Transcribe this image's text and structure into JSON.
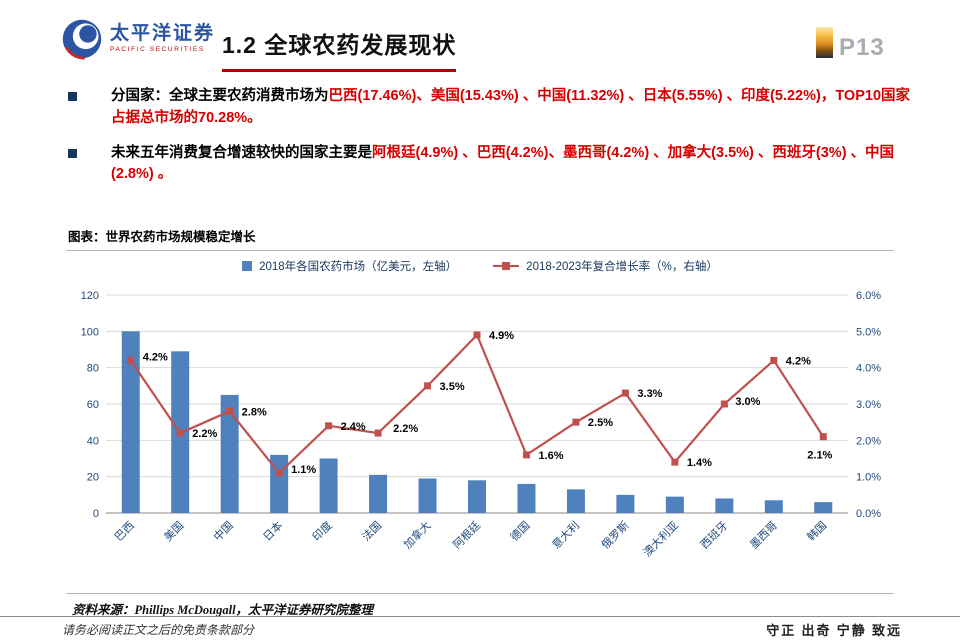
{
  "header": {
    "logo": {
      "cn": "太平洋证券",
      "en": "PACIFIC SECURITIES"
    },
    "title": "1.2 全球农药发展现状",
    "page_number": "P13"
  },
  "bullets": [
    {
      "black": "分国家：全球主要农药消费市场为",
      "red": "巴西(17.46%)、美国(15.43%) 、中国(11.32%) 、日本(5.55%) 、印度(5.22%)，TOP10国家占据总市场的70.28%。"
    },
    {
      "black": "未来五年消费复合增速较快的国家主要是",
      "red": "阿根廷(4.9%) 、巴西(4.2%)、墨西哥(4.2%) 、加拿大(3.5%) 、西班牙(3%) 、中国(2.8%) 。"
    }
  ],
  "chart_section": {
    "title": "图表：世界农药市场规模稳定增长",
    "source": "资料来源：Phillips McDougall，太平洋证券研究院整理"
  },
  "chart_data": {
    "type": "combo",
    "categories": [
      "巴西",
      "美国",
      "中国",
      "日本",
      "印度",
      "法国",
      "加拿大",
      "阿根廷",
      "德国",
      "意大利",
      "俄罗斯",
      "澳大利亚",
      "西班牙",
      "墨西哥",
      "韩国"
    ],
    "series": [
      {
        "name": "2018年各国农药市场（亿美元，左轴）",
        "type": "bar",
        "color": "#4F81BD",
        "axis": "left",
        "values": [
          100,
          89,
          65,
          32,
          30,
          21,
          19,
          18,
          16,
          13,
          10,
          9,
          8,
          7,
          6
        ]
      },
      {
        "name": "2018-2023年复合增长率（%，右轴）",
        "type": "line",
        "color": "#C0504D",
        "axis": "right",
        "values": [
          4.2,
          2.2,
          2.8,
          1.1,
          2.4,
          2.2,
          3.5,
          4.9,
          1.6,
          2.5,
          3.3,
          1.4,
          3.0,
          4.2,
          2.1
        ],
        "labels": [
          "4.2%",
          "2.2%",
          "2.8%",
          "1.1%",
          "2.4%",
          "2.2%",
          "3.5%",
          "4.9%",
          "1.6%",
          "2.5%",
          "3.3%",
          "1.4%",
          "3.0%",
          "4.2%",
          "2.1%"
        ]
      }
    ],
    "left_axis": {
      "min": 0,
      "max": 120,
      "step": 20,
      "ticks": [
        "0",
        "20",
        "40",
        "60",
        "80",
        "100",
        "120"
      ]
    },
    "right_axis": {
      "min": 0,
      "max": 6,
      "step": 1,
      "ticks": [
        "0.0%",
        "1.0%",
        "2.0%",
        "3.0%",
        "4.0%",
        "5.0%",
        "6.0%"
      ]
    },
    "grid": true,
    "legend_position": "top"
  },
  "footer": {
    "left": "请务必阅读正文之后的免责条款部分",
    "right": "守正 出奇 宁静 致远"
  },
  "colors": {
    "accent_red": "#B00000",
    "text_red": "#D60000",
    "bullet_navy": "#17375E",
    "bar_blue": "#4F81BD",
    "line_red": "#C0504D",
    "axis_text": "#1F497D",
    "page_number_gray": "#A8ABB0",
    "logo_blue": "#2B55A2"
  }
}
